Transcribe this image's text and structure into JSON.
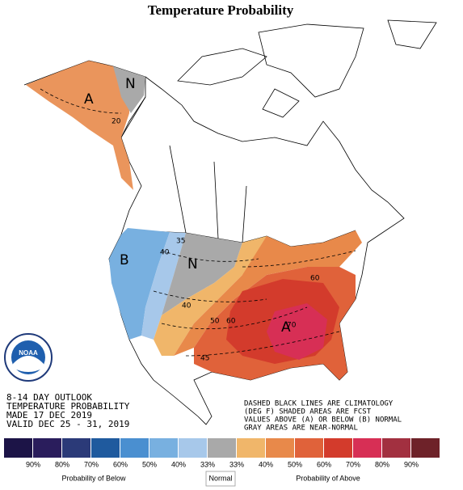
{
  "header": {
    "title": "Temperature Probability"
  },
  "logo": "NOAA",
  "outlook": [
    "8-14 DAY OUTLOOK",
    "TEMPERATURE PROBABILITY",
    "MADE  17 DEC 2019",
    "VALID  DEC 25 - 31, 2019"
  ],
  "notes": [
    "DASHED BLACK LINES ARE CLIMATOLOGY",
    "(DEG F) SHADED AREAS ARE FCST",
    "VALUES ABOVE (A) OR BELOW (B) NORMAL",
    "GRAY AREAS ARE NEAR-NORMAL"
  ],
  "map": {
    "region_labels": [
      "A",
      "N",
      "B",
      "N",
      "A"
    ],
    "contour_labels": [
      "20",
      "35",
      "40",
      "40",
      "45",
      "50",
      "60",
      "70",
      "60"
    ]
  },
  "legend": {
    "colors": [
      "#1c1447",
      "#2a1d5c",
      "#2b3a78",
      "#1f5a9e",
      "#4a8fd0",
      "#78b0e0",
      "#a7c8ea",
      "#a9a9a9",
      "#f0b66a",
      "#e8894a",
      "#e0623a",
      "#d33b2c",
      "#d72f55",
      "#a23040",
      "#6e2229"
    ],
    "labels": [
      "90%",
      "80%",
      "70%",
      "60%",
      "50%",
      "40%",
      "33%",
      "33%",
      "40%",
      "50%",
      "60%",
      "70%",
      "80%",
      "90%"
    ],
    "captions": [
      "Probability of Below",
      "Normal",
      "Probability of Above"
    ]
  }
}
